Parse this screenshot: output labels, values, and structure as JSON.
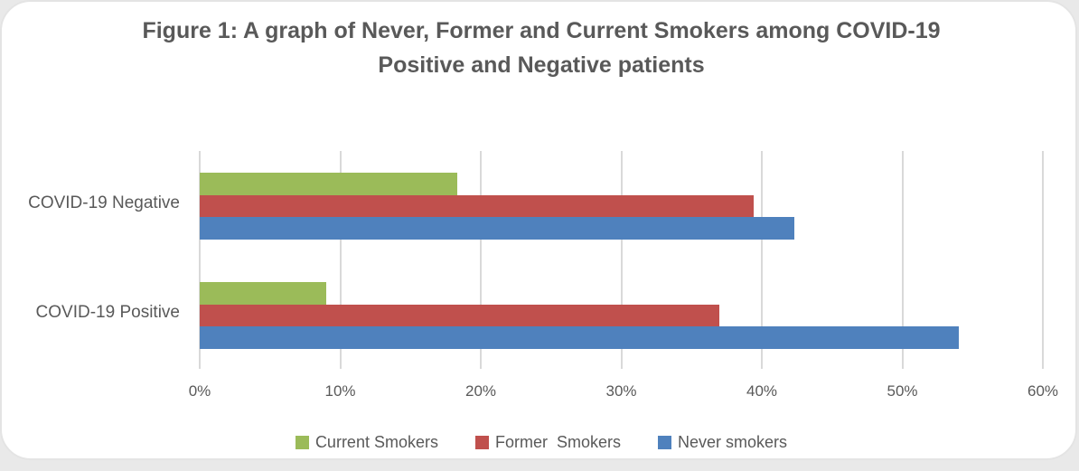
{
  "figure": {
    "title_line1": "Figure 1: A graph of Never, Former and Current Smokers among COVID-19",
    "title_line2": "Positive and Negative patients"
  },
  "chart_data": {
    "type": "bar",
    "orientation": "horizontal",
    "title": "Figure 1: A graph of Never, Former and Current Smokers among COVID-19 Positive and Negative patients",
    "categories": [
      "COVID-19 Negative",
      "COVID-19 Positive"
    ],
    "series": [
      {
        "name": "Current Smokers",
        "color": "#9BBB59",
        "values": [
          18.3,
          9
        ]
      },
      {
        "name": "Former  Smokers",
        "color": "#C0504D",
        "values": [
          39.4,
          37
        ]
      },
      {
        "name": "Never smokers",
        "color": "#4F81BD",
        "values": [
          42.3,
          54
        ]
      }
    ],
    "x_ticks": [
      "0%",
      "10%",
      "20%",
      "30%",
      "40%",
      "50%",
      "60%"
    ],
    "xlim": [
      0,
      60
    ],
    "xlabel": "",
    "ylabel": "",
    "grid": "vertical",
    "legend_position": "bottom"
  },
  "colors": {
    "text": "#595959",
    "gridline": "#D9D9D9",
    "card_border": "#E4E4E4",
    "page_background": "#E9E9E9"
  }
}
